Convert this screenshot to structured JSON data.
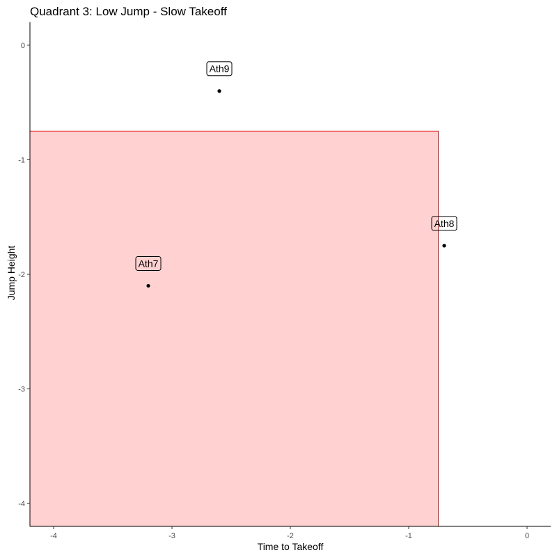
{
  "chart_data": {
    "type": "scatter",
    "title": "Quadrant 3: Low Jump - Slow Takeoff",
    "xlabel": "Time to Takeoff",
    "ylabel": "Jump Height",
    "xlim": [
      -4.2,
      0.2
    ],
    "ylim": [
      -4.2,
      0.2
    ],
    "xticks": [
      -4,
      -3,
      -2,
      -1,
      0
    ],
    "yticks": [
      -4,
      -3,
      -2,
      -1,
      0
    ],
    "grid": false,
    "points": [
      {
        "label": "Ath9",
        "x": -2.6,
        "y": -0.4
      },
      {
        "label": "Ath8",
        "x": -0.7,
        "y": -1.75
      },
      {
        "label": "Ath7",
        "x": -3.2,
        "y": -2.1
      }
    ],
    "highlight_region": {
      "x_range": [
        -4.2,
        -0.75
      ],
      "y_range": [
        -4.2,
        -0.75
      ],
      "fill": "#ff0000",
      "fill_opacity": 0.18,
      "stroke": "#e31a1c"
    }
  }
}
